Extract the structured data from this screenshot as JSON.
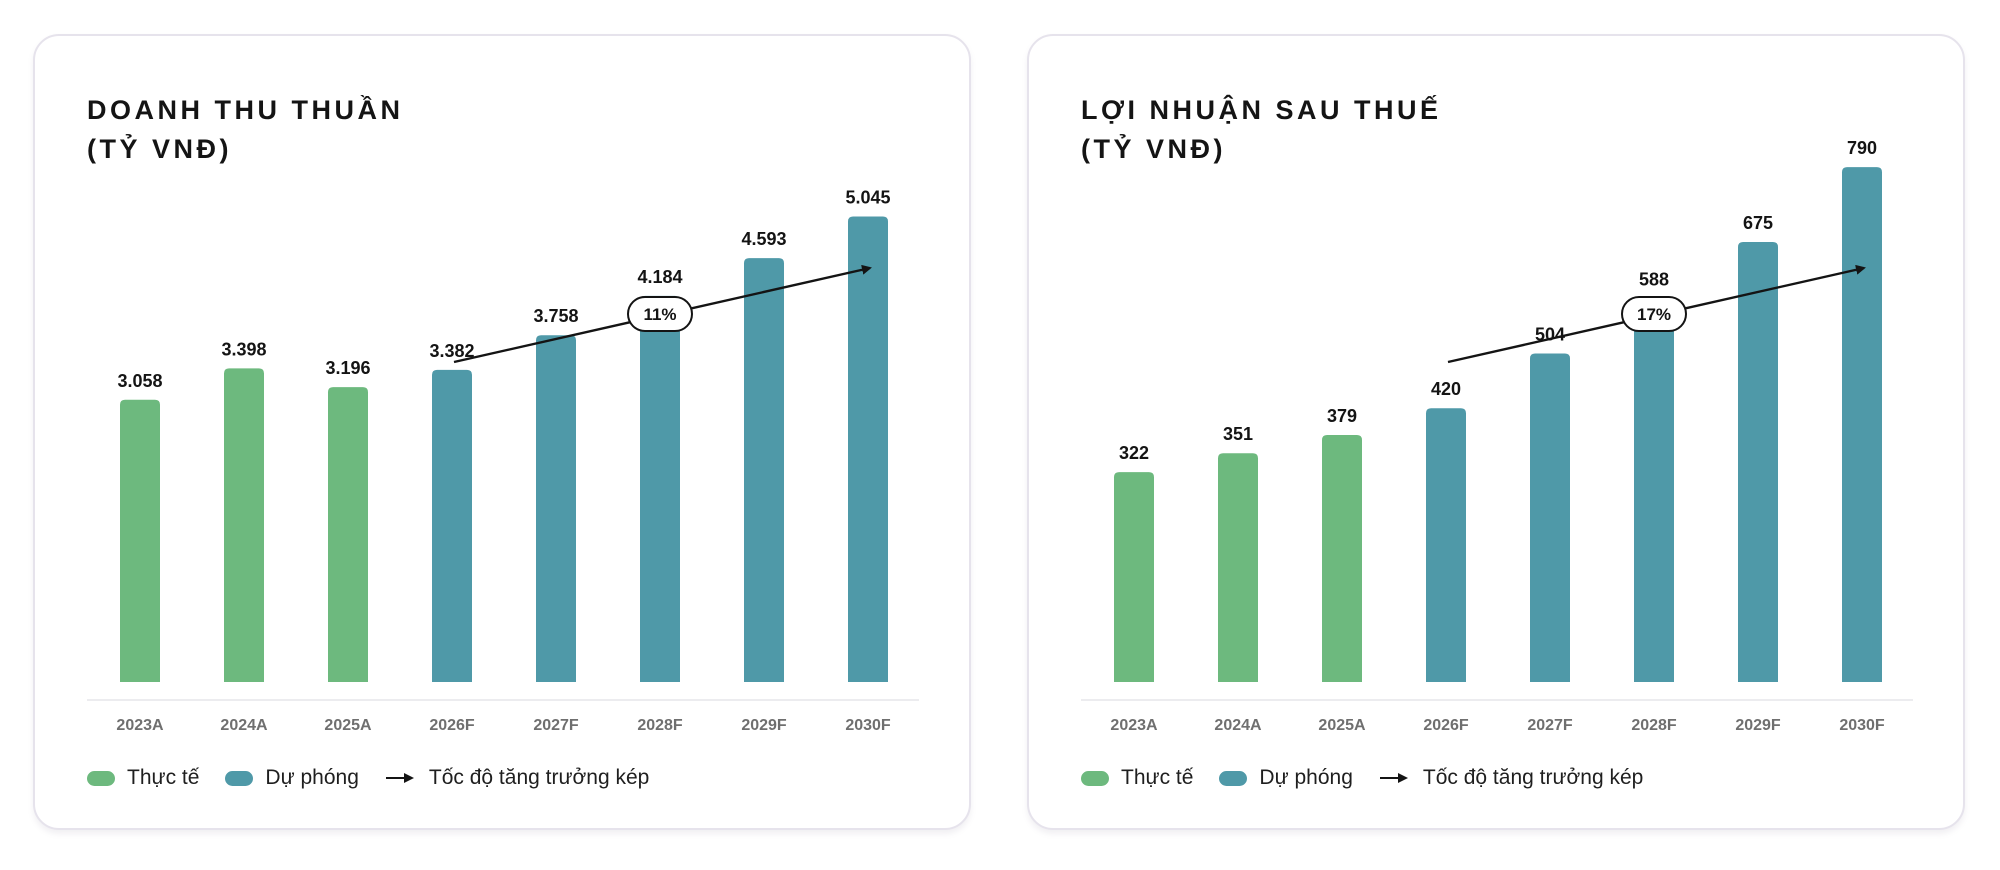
{
  "colors": {
    "actual": "#6db97e",
    "forecast": "#4f99a8",
    "text": "#141414",
    "tick": "#6f6f6f",
    "axis": "#ececef"
  },
  "legend": {
    "actual_label": "Thực tế",
    "forecast_label": "Dự phóng",
    "cagr_label": "Tốc độ tăng trưởng kép"
  },
  "chart_data": [
    {
      "type": "bar",
      "title_line1": "DOANH THU THUẦN",
      "title_line2": "(TỶ VNĐ)",
      "categories": [
        "2023A",
        "2024A",
        "2025A",
        "2026F",
        "2027F",
        "2028F",
        "2029F",
        "2030F"
      ],
      "values": [
        3058,
        3398,
        3196,
        3382,
        3758,
        4184,
        4593,
        5045
      ],
      "value_labels": [
        "3.058",
        "3.398",
        "3.196",
        "3.382",
        "3.758",
        "4.184",
        "4.593",
        "5.045"
      ],
      "series_type": [
        "actual",
        "actual",
        "actual",
        "forecast",
        "forecast",
        "forecast",
        "forecast",
        "forecast"
      ],
      "ylim": [
        0,
        5700
      ],
      "cagr_label": "11%"
    },
    {
      "type": "bar",
      "title_line1": "LỢI NHUẬN SAU THUẾ",
      "title_line2": "(TỶ VNĐ)",
      "categories": [
        "2023A",
        "2024A",
        "2025A",
        "2026F",
        "2027F",
        "2028F",
        "2029F",
        "2030F"
      ],
      "values": [
        322,
        351,
        379,
        420,
        504,
        588,
        675,
        790
      ],
      "value_labels": [
        "322",
        "351",
        "379",
        "420",
        "504",
        "588",
        "675",
        "790"
      ],
      "series_type": [
        "actual",
        "actual",
        "actual",
        "forecast",
        "forecast",
        "forecast",
        "forecast",
        "forecast"
      ],
      "ylim": [
        0,
        807
      ],
      "cagr_label": "17%"
    }
  ]
}
